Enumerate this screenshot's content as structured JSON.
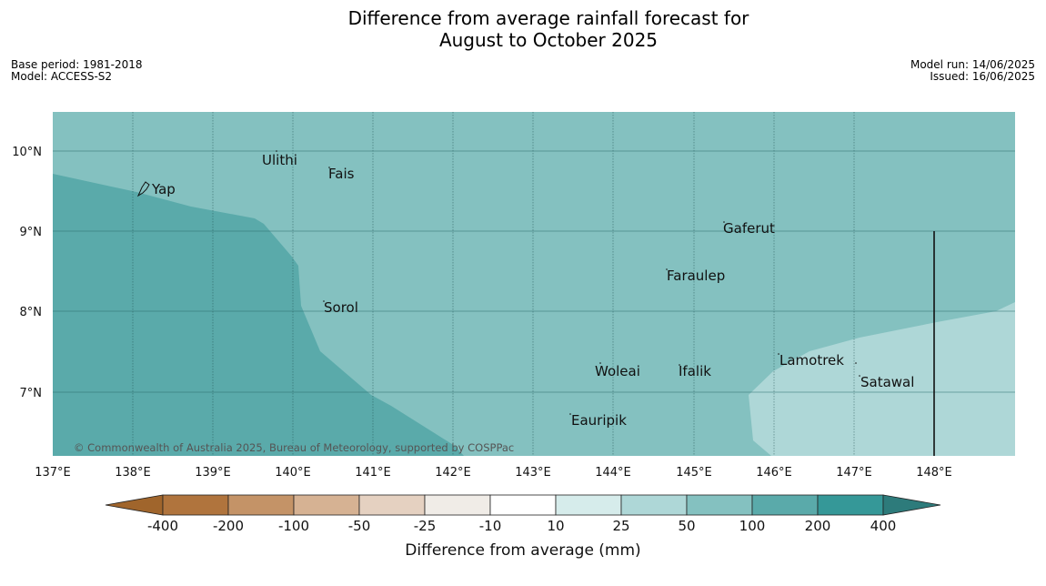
{
  "title_line1": "Difference from average rainfall forecast for",
  "title_line2": "August to October 2025",
  "meta": {
    "base_period": "Base period: 1981-2018",
    "model": "Model: ACCESS-S2",
    "model_run": "Model run: 14/06/2025",
    "issued": "Issued: 16/06/2025"
  },
  "map": {
    "lon_range": [
      137,
      149
    ],
    "lat_range": [
      6.25,
      10.5
    ],
    "lon_ticks": [
      "137°E",
      "138°E",
      "139°E",
      "140°E",
      "141°E",
      "142°E",
      "143°E",
      "144°E",
      "145°E",
      "146°E",
      "147°E",
      "148°E"
    ],
    "lat_ticks": [
      "10°N",
      "9°N",
      "8°N",
      "7°N"
    ],
    "places": [
      {
        "name": "Yap",
        "lon": 138.15,
        "lat": 9.5
      },
      {
        "name": "Ulithi",
        "lon": 139.75,
        "lat": 9.9
      },
      {
        "name": "Fais",
        "lon": 140.5,
        "lat": 9.75
      },
      {
        "name": "Gaferut",
        "lon": 145.4,
        "lat": 9.05
      },
      {
        "name": "Faraulep",
        "lon": 144.7,
        "lat": 8.45
      },
      {
        "name": "Sorol",
        "lon": 140.4,
        "lat": 8.05
      },
      {
        "name": "Lamotrek",
        "lon": 146.05,
        "lat": 7.35
      },
      {
        "name": "Woleai",
        "lon": 143.8,
        "lat": 7.25
      },
      {
        "name": "Ifalik",
        "lon": 144.8,
        "lat": 7.25
      },
      {
        "name": "Satawal",
        "lon": 147.1,
        "lat": 7.1
      },
      {
        "name": "Eauripik",
        "lon": 143.5,
        "lat": 6.6
      }
    ],
    "copyright": "© Commonwealth of Australia 2025, Bureau of Meteorology, supported by COSPPac"
  },
  "colorbar": {
    "title": "Difference from average (mm)",
    "labels": [
      "-400",
      "-200",
      "-100",
      "-50",
      "-25",
      "-10",
      "10",
      "25",
      "50",
      "100",
      "200",
      "400"
    ],
    "colors": [
      "#a0652c",
      "#b0743d",
      "#c49367",
      "#d6b293",
      "#e5d1c1",
      "#f0ece7",
      "#ffffff",
      "#d6eceb",
      "#aed7d7",
      "#84c1c0",
      "#5aaaaa",
      "#359898",
      "#2d7b7b"
    ]
  }
}
